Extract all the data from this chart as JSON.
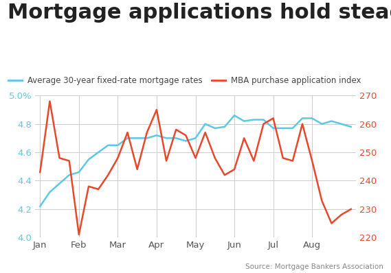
{
  "title": "Mortgage applications hold steady",
  "legend1": "Average 30-year fixed-rate mortgage rates",
  "legend2": "MBA purchase application index",
  "source": "Source: Mortgage Bankers Association",
  "xlabels": [
    "Jan",
    "Feb",
    "Mar",
    "Apr",
    "May",
    "Jun",
    "Jul",
    "Aug"
  ],
  "mortgage_x": [
    0,
    1,
    2,
    3,
    4,
    5,
    6,
    7,
    8,
    9,
    10,
    11,
    12,
    13,
    14,
    15,
    16,
    17,
    18,
    19,
    20,
    21,
    22,
    23,
    24,
    25,
    26,
    27,
    28,
    29,
    30,
    31,
    32
  ],
  "mortgage_y": [
    4.22,
    4.32,
    4.38,
    4.44,
    4.46,
    4.55,
    4.6,
    4.65,
    4.65,
    4.7,
    4.7,
    4.7,
    4.72,
    4.7,
    4.7,
    4.68,
    4.7,
    4.8,
    4.77,
    4.78,
    4.86,
    4.82,
    4.83,
    4.83,
    4.77,
    4.77,
    4.77,
    4.84,
    4.84,
    4.8,
    4.82,
    4.8,
    4.78
  ],
  "mba_x": [
    0,
    1,
    2,
    3,
    4,
    5,
    6,
    7,
    8,
    9,
    10,
    11,
    12,
    13,
    14,
    15,
    16,
    17,
    18,
    19,
    20,
    21,
    22,
    23,
    24,
    25,
    26,
    27,
    28,
    29,
    30,
    31,
    32
  ],
  "mba_y": [
    243,
    268,
    248,
    247,
    221,
    238,
    237,
    242,
    248,
    257,
    244,
    257,
    265,
    247,
    258,
    256,
    248,
    257,
    248,
    242,
    244,
    255,
    247,
    260,
    262,
    248,
    247,
    260,
    247,
    233,
    225,
    228,
    230
  ],
  "mortgage_color": "#5bc8e8",
  "mba_color": "#e8472a",
  "ylim_left": [
    4.0,
    5.0
  ],
  "ylim_right": [
    220,
    270
  ],
  "yticks_left": [
    4.0,
    4.2,
    4.4,
    4.6,
    4.8,
    5.0
  ],
  "yticks_right": [
    220,
    230,
    240,
    250,
    260,
    270
  ],
  "month_positions": [
    0,
    4,
    8,
    12,
    16,
    20,
    24,
    28
  ],
  "grid_color": "#cccccc",
  "background_color": "#ffffff",
  "title_fontsize": 22,
  "tick_fontsize": 9.5,
  "legend_fontsize": 8.5,
  "source_fontsize": 7.5,
  "line_width": 1.8
}
